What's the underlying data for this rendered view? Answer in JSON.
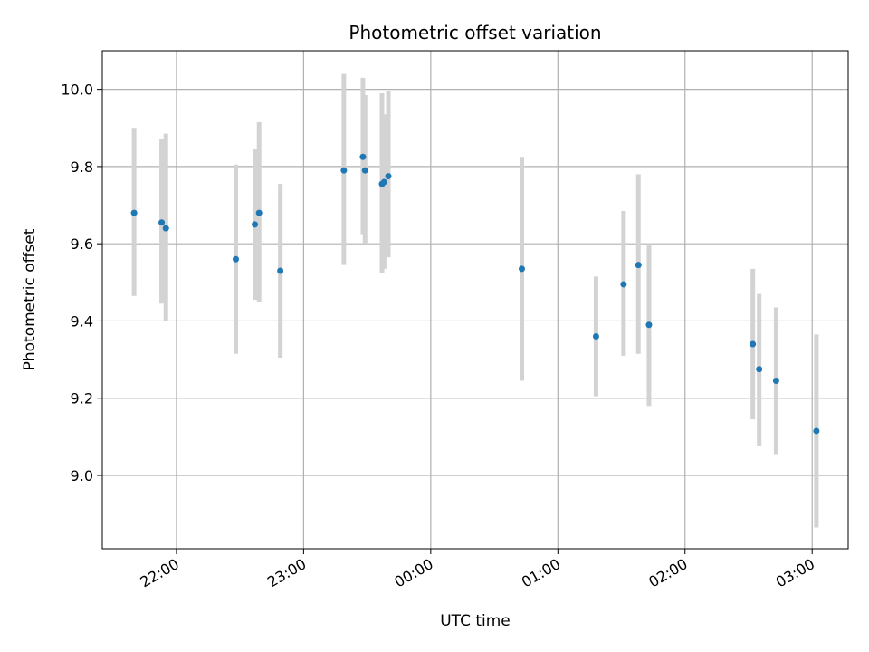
{
  "chart_data": {
    "type": "scatter",
    "title": "Photometric offset variation",
    "xlabel": "UTC time",
    "ylabel": "Photometric offset",
    "x_ticks": [
      "22:00",
      "23:00",
      "00:00",
      "01:00",
      "02:00",
      "03:00"
    ],
    "y_ticks": [
      "9.0",
      "9.2",
      "9.4",
      "9.6",
      "9.8",
      "10.0"
    ],
    "xlim": [
      "21:25",
      "03:17"
    ],
    "ylim": [
      8.81,
      10.1
    ],
    "grid": true,
    "series": [
      {
        "points": [
          {
            "x": "21:40",
            "y": 9.68,
            "yerr_low": 9.465,
            "yerr_high": 9.9
          },
          {
            "x": "21:53",
            "y": 9.655,
            "yerr_low": 9.445,
            "yerr_high": 9.87
          },
          {
            "x": "21:55",
            "y": 9.64,
            "yerr_low": 9.4,
            "yerr_high": 9.885
          },
          {
            "x": "22:28",
            "y": 9.56,
            "yerr_low": 9.315,
            "yerr_high": 9.805
          },
          {
            "x": "22:37",
            "y": 9.65,
            "yerr_low": 9.455,
            "yerr_high": 9.845
          },
          {
            "x": "22:39",
            "y": 9.68,
            "yerr_low": 9.45,
            "yerr_high": 9.915
          },
          {
            "x": "22:49",
            "y": 9.53,
            "yerr_low": 9.305,
            "yerr_high": 9.755
          },
          {
            "x": "23:19",
            "y": 9.79,
            "yerr_low": 9.545,
            "yerr_high": 10.04
          },
          {
            "x": "23:28",
            "y": 9.825,
            "yerr_low": 9.625,
            "yerr_high": 10.03
          },
          {
            "x": "23:29",
            "y": 9.79,
            "yerr_low": 9.6,
            "yerr_high": 9.985
          },
          {
            "x": "23:37",
            "y": 9.755,
            "yerr_low": 9.525,
            "yerr_high": 9.99
          },
          {
            "x": "23:38",
            "y": 9.76,
            "yerr_low": 9.535,
            "yerr_high": 9.935
          },
          {
            "x": "23:40",
            "y": 9.775,
            "yerr_low": 9.565,
            "yerr_high": 9.995
          },
          {
            "x": "00:43",
            "y": 9.535,
            "yerr_low": 9.245,
            "yerr_high": 9.825
          },
          {
            "x": "01:18",
            "y": 9.36,
            "yerr_low": 9.205,
            "yerr_high": 9.515
          },
          {
            "x": "01:31",
            "y": 9.495,
            "yerr_low": 9.31,
            "yerr_high": 9.685
          },
          {
            "x": "01:38",
            "y": 9.545,
            "yerr_low": 9.315,
            "yerr_high": 9.78
          },
          {
            "x": "01:43",
            "y": 9.39,
            "yerr_low": 9.18,
            "yerr_high": 9.6
          },
          {
            "x": "02:32",
            "y": 9.34,
            "yerr_low": 9.145,
            "yerr_high": 9.535
          },
          {
            "x": "02:35",
            "y": 9.275,
            "yerr_low": 9.075,
            "yerr_high": 9.47
          },
          {
            "x": "02:43",
            "y": 9.245,
            "yerr_low": 9.055,
            "yerr_high": 9.435
          },
          {
            "x": "03:02",
            "y": 9.115,
            "yerr_low": 8.865,
            "yerr_high": 9.365
          }
        ]
      }
    ],
    "colors": {
      "point": "#1f77b4",
      "errorbar": "#d3d3d3",
      "grid": "#b0b0b0",
      "axes": "#000000"
    }
  }
}
